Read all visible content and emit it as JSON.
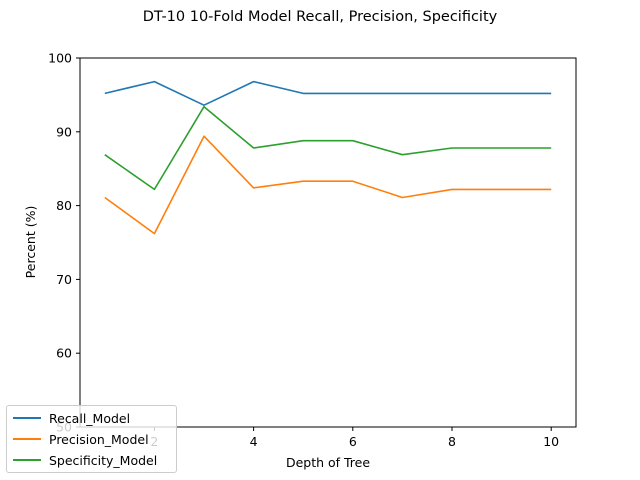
{
  "chart_data": {
    "type": "line",
    "title": "DT-10 10-Fold Model Recall, Precision, Specificity",
    "xlabel": "Depth of Tree",
    "ylabel": "Percent (%)",
    "xlim": [
      0.5,
      10.5
    ],
    "ylim": [
      50,
      100
    ],
    "xticks": [
      2,
      4,
      6,
      8,
      10
    ],
    "yticks": [
      50,
      60,
      70,
      80,
      90,
      100
    ],
    "grid": false,
    "legend_position": "lower-left",
    "x": [
      1,
      2,
      3,
      4,
      5,
      6,
      7,
      8,
      9,
      10
    ],
    "series": [
      {
        "name": "Recall_Model",
        "color": "#1f77b4",
        "values": [
          95.2,
          96.8,
          93.6,
          96.8,
          95.2,
          95.2,
          95.2,
          95.2,
          95.2,
          95.2
        ]
      },
      {
        "name": "Precision_Model",
        "color": "#ff7f0e",
        "values": [
          81.1,
          76.2,
          89.4,
          82.4,
          83.3,
          83.3,
          81.1,
          82.2,
          82.2,
          82.2
        ]
      },
      {
        "name": "Specificity_Model",
        "color": "#2ca02c",
        "values": [
          86.9,
          82.2,
          93.4,
          87.8,
          88.8,
          88.8,
          86.9,
          87.8,
          87.8,
          87.8
        ]
      }
    ]
  }
}
